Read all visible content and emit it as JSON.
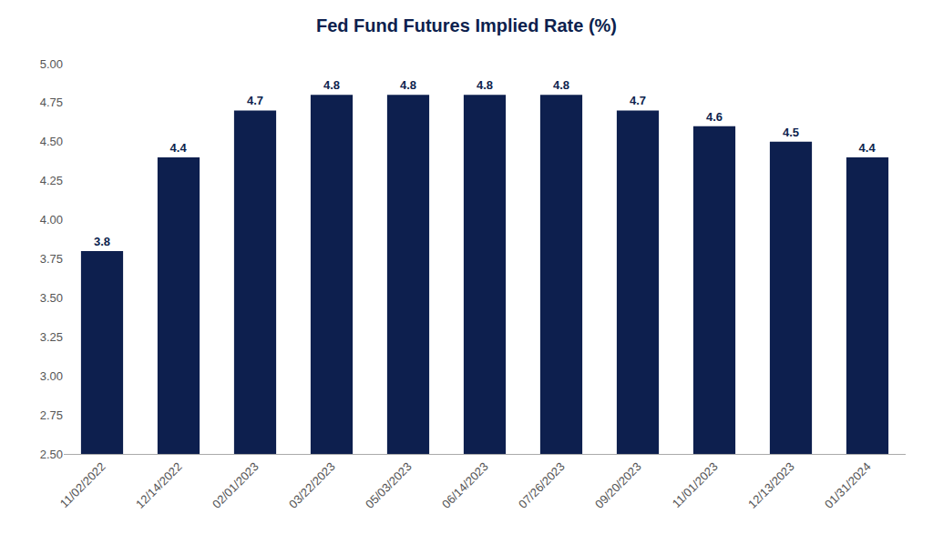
{
  "chart_data": {
    "type": "bar",
    "title": "Fed Fund Futures Implied Rate (%)",
    "categories": [
      "11/02/2022",
      "12/14/2022",
      "02/01/2023",
      "03/22/2023",
      "05/03/2023",
      "06/14/2023",
      "07/26/2023",
      "09/20/2023",
      "11/01/2023",
      "12/13/2023",
      "01/31/2024"
    ],
    "values": [
      3.8,
      4.4,
      4.7,
      4.8,
      4.8,
      4.8,
      4.8,
      4.7,
      4.6,
      4.5,
      4.4
    ],
    "color": "#0d1f4e",
    "ylim": [
      2.5,
      5.0
    ],
    "yticks": [
      {
        "value": 2.5,
        "label": "2.50"
      },
      {
        "value": 2.75,
        "label": "2.75"
      },
      {
        "value": 3.0,
        "label": "3.00"
      },
      {
        "value": 3.25,
        "label": "3.25"
      },
      {
        "value": 3.5,
        "label": "3.50"
      },
      {
        "value": 3.75,
        "label": "3.75"
      },
      {
        "value": 4.0,
        "label": "4.00"
      },
      {
        "value": 4.25,
        "label": "4.25"
      },
      {
        "value": 4.5,
        "label": "4.50"
      },
      {
        "value": 4.75,
        "label": "4.75"
      },
      {
        "value": 5.0,
        "label": "5.00"
      }
    ],
    "grid": false,
    "data_labels": true
  }
}
